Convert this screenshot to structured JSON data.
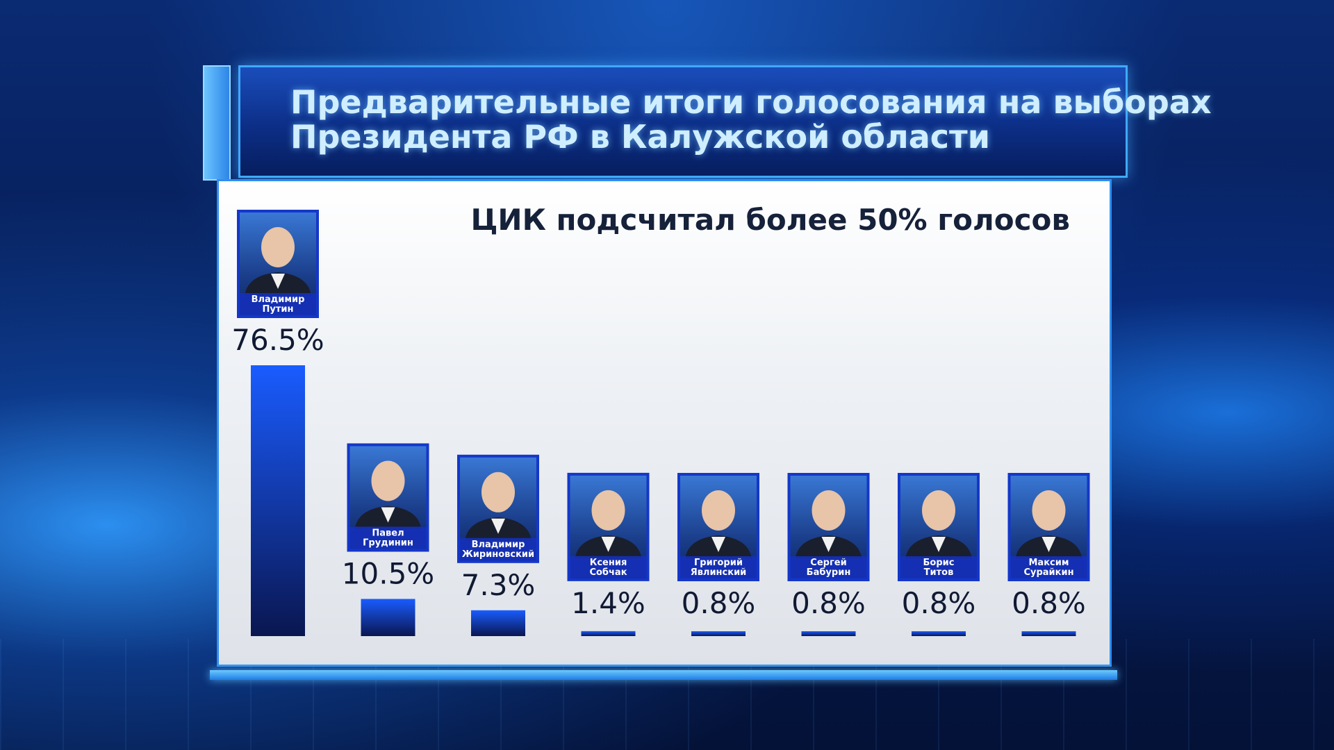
{
  "title": {
    "line1": "Предварительные итоги голосования на выборах",
    "line2": "Президента РФ в Калужской области"
  },
  "subtitle": "ЦИК подсчитал более 50% голосов",
  "colors": {
    "bar_top": "#1a5cff",
    "bar_bottom": "#0a1650",
    "accent": "#3fa9ff",
    "panel": "#eef1f5"
  },
  "chart_data": {
    "type": "bar",
    "categories": [
      "Владимир Путин",
      "Павел Грудинин",
      "Владимир Жириновский",
      "Ксения Собчак",
      "Григорий Явлинский",
      "Сергей Бабурин",
      "Борис Титов",
      "Максим Сурайкин"
    ],
    "labels": [
      [
        "Владимир",
        "Путин"
      ],
      [
        "Павел",
        "Грудинин"
      ],
      [
        "Владимир",
        "Жириновский"
      ],
      [
        "Ксения",
        "Собчак"
      ],
      [
        "Григорий",
        "Явлинский"
      ],
      [
        "Сергей",
        "Бабурин"
      ],
      [
        "Борис",
        "Титов"
      ],
      [
        "Максим",
        "Сурайкин"
      ]
    ],
    "values": [
      76.5,
      10.5,
      7.3,
      1.4,
      0.8,
      0.8,
      0.8,
      0.8
    ],
    "value_labels": [
      "76.5%",
      "10.5%",
      "7.3%",
      "1.4%",
      "0.8%",
      "0.8%",
      "0.8%",
      "0.8%"
    ],
    "unit": "%"
  }
}
